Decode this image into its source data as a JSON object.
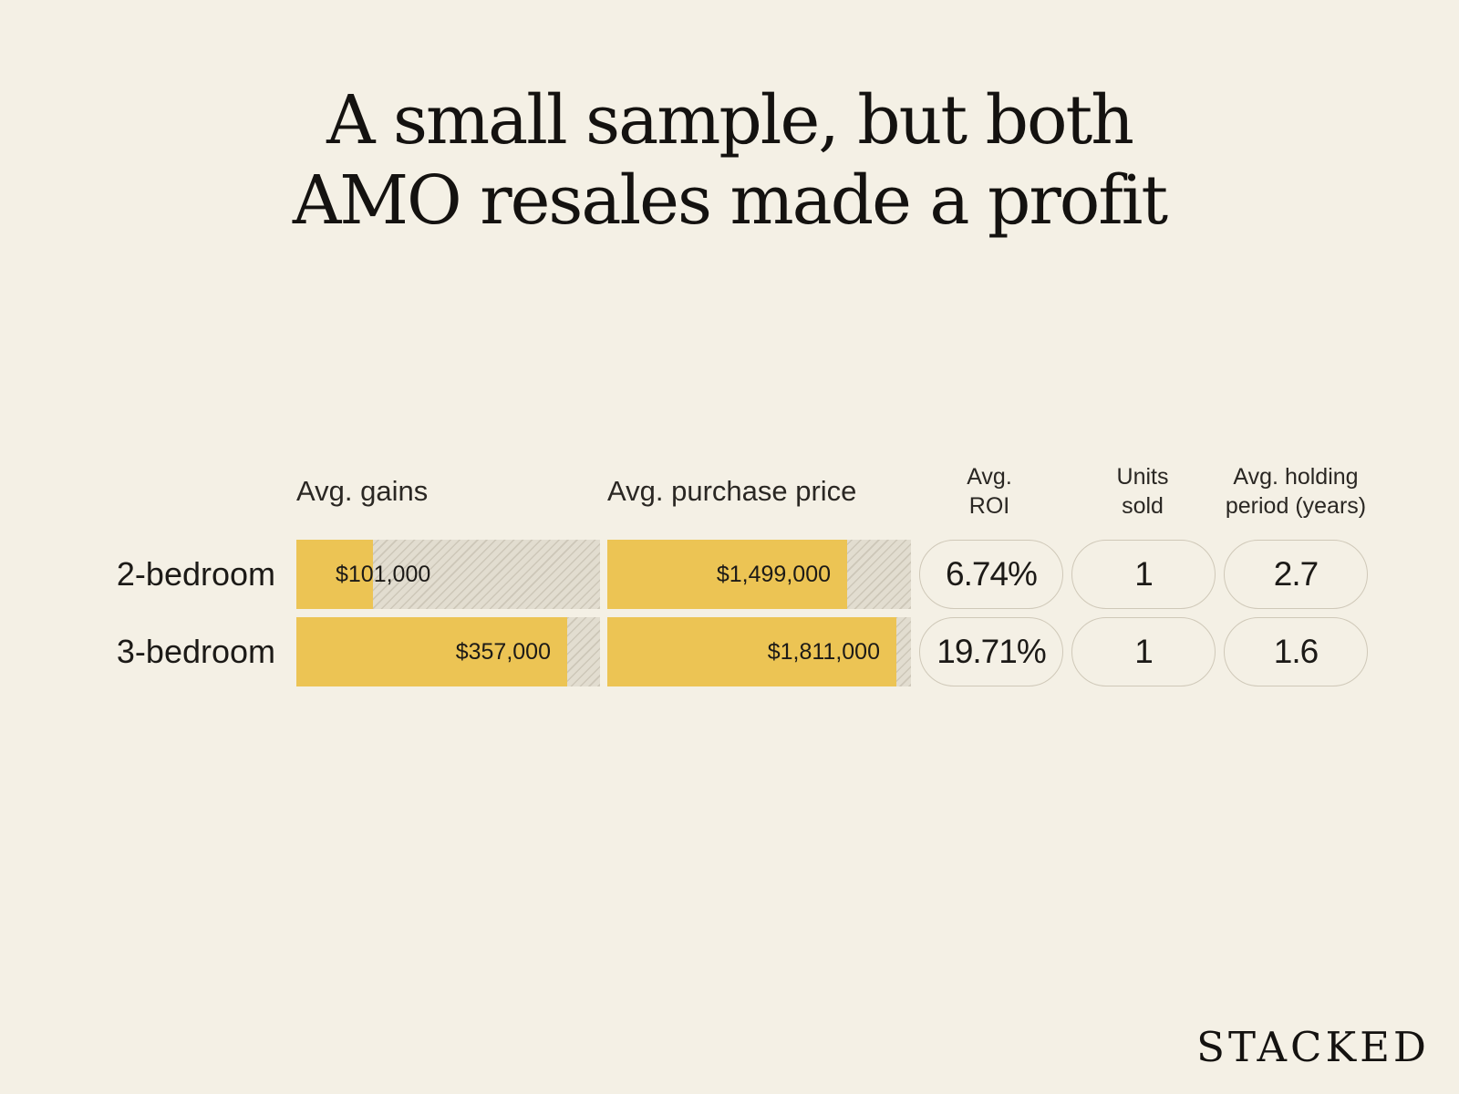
{
  "title_lines": [
    "A small sample, but both",
    "AMO resales made a profit"
  ],
  "brand": "STACKED",
  "columns": {
    "gains": "Avg. gains",
    "purchase": "Avg. purchase price",
    "roi": "Avg.\nROI",
    "units": "Units\nsold",
    "holding": "Avg. holding\nperiod (years)"
  },
  "colors": {
    "background": "#f4f0e5",
    "bar": "#ecc454",
    "track": "#e2ddd0"
  },
  "chart_data": {
    "type": "table",
    "title": "A small sample, but both AMO resales made a profit",
    "rows": [
      {
        "label": "2-bedroom",
        "avg_gains": 101000,
        "avg_gains_label": "$101,000",
        "avg_purchase_price": 1499000,
        "avg_purchase_price_label": "$1,499,000",
        "avg_roi": "6.74%",
        "units_sold": "1",
        "avg_holding_period": "2.7"
      },
      {
        "label": "3-bedroom",
        "avg_gains": 357000,
        "avg_gains_label": "$357,000",
        "avg_purchase_price": 1811000,
        "avg_purchase_price_label": "$1,811,000",
        "avg_roi": "19.71%",
        "units_sold": "1",
        "avg_holding_period": "1.6"
      }
    ],
    "gains_scale_max": 400000,
    "purchase_scale_max": 1900000
  }
}
